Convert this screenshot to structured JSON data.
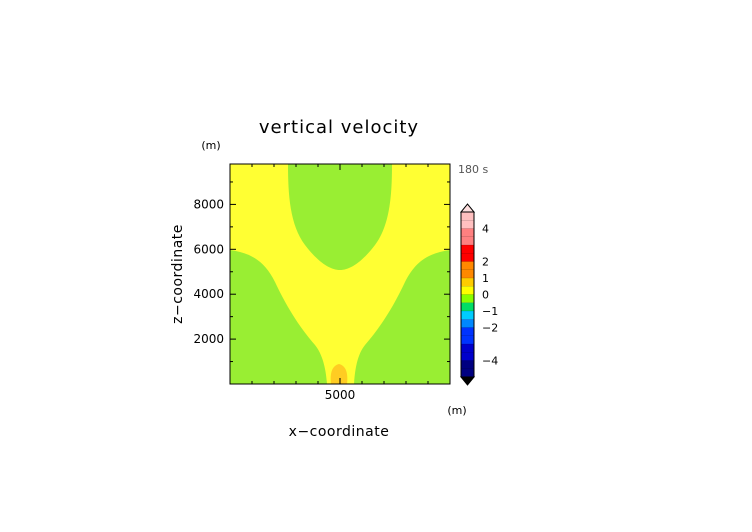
{
  "chart_data": {
    "type": "heatmap",
    "title": "vertical velocity",
    "xlabel": "x−coordinate",
    "ylabel": "z−coordinate",
    "x_unit": "(m)",
    "y_unit": "(m)",
    "time_label": "180 s",
    "xlim": [
      0,
      10000
    ],
    "ylim": [
      0,
      9800
    ],
    "x_ticks": [
      5000
    ],
    "y_ticks": [
      2000,
      4000,
      6000,
      8000
    ],
    "x_tick_labels": [
      "5000"
    ],
    "y_tick_labels": [
      "2000",
      "4000",
      "6000",
      "8000"
    ],
    "field_levels": [
      {
        "level": 0.0,
        "color": "#99ee33",
        "meaning": "-0.25 to 0 m/s (light green)"
      },
      {
        "level": 0.5,
        "color": "#ffff33",
        "meaning": "0 to 0.5 m/s (yellow)"
      },
      {
        "level": 1.0,
        "color": "#ffcc22",
        "meaning": "0.5 to 1.0 m/s (orange)"
      }
    ],
    "colorbar": {
      "tick_labels": [
        "4",
        "2",
        "1",
        "0",
        "−1",
        "−2",
        "−4"
      ],
      "tick_values": [
        4,
        2,
        1,
        0,
        -1,
        -2,
        -4
      ],
      "segments": [
        {
          "upper": 5.0,
          "color": "#ffc0c0"
        },
        {
          "upper": 4.0,
          "color": "#ff8080"
        },
        {
          "upper": 3.0,
          "color": "#ff0000"
        },
        {
          "upper": 2.0,
          "color": "#ff8800"
        },
        {
          "upper": 1.0,
          "color": "#ffcc00"
        },
        {
          "upper": 0.5,
          "color": "#ffff00"
        },
        {
          "upper": 0.0,
          "color": "#88ff00"
        },
        {
          "upper": -0.5,
          "color": "#00dd66"
        },
        {
          "upper": -1.0,
          "color": "#00ccff"
        },
        {
          "upper": -1.5,
          "color": "#0088ff"
        },
        {
          "upper": -2.0,
          "color": "#0033ff"
        },
        {
          "upper": -3.0,
          "color": "#0000cc"
        },
        {
          "upper": -4.0,
          "color": "#000080"
        }
      ],
      "range": [
        -5,
        5
      ]
    }
  }
}
